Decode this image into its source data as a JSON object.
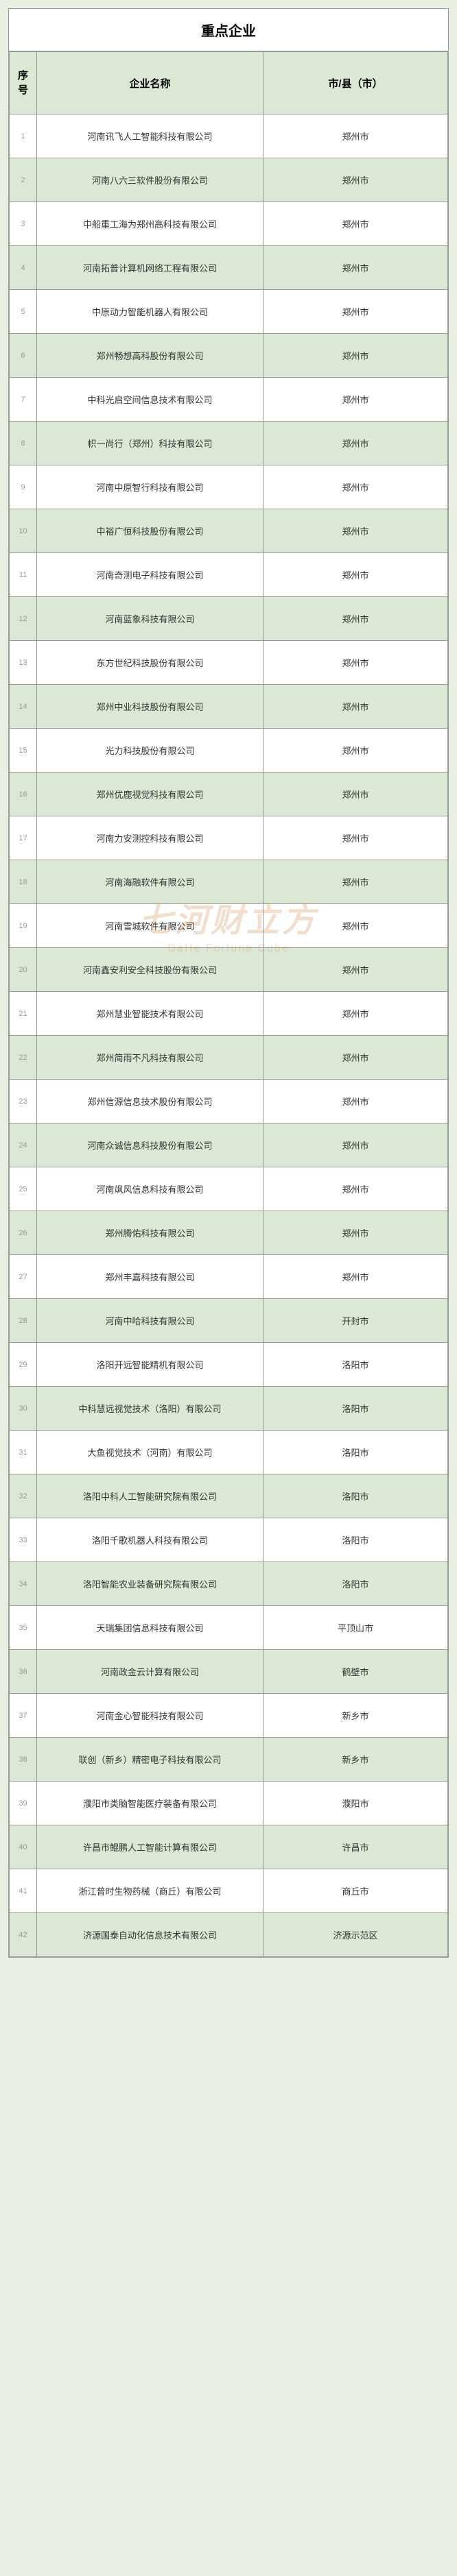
{
  "title": "重点企业",
  "headers": {
    "seq": "序\n号",
    "company": "企业名称",
    "city": "市/县（市）"
  },
  "watermark": {
    "cn": "七河财立方",
    "en": "DaHe Fortune Cube"
  },
  "rows": [
    {
      "seq": "1",
      "company": "河南讯飞人工智能科技有限公司",
      "city": "郑州市"
    },
    {
      "seq": "2",
      "company": "河南八六三软件股份有限公司",
      "city": "郑州市"
    },
    {
      "seq": "3",
      "company": "中船重工海为郑州高科技有限公司",
      "city": "郑州市"
    },
    {
      "seq": "4",
      "company": "河南拓普计算机网络工程有限公司",
      "city": "郑州市"
    },
    {
      "seq": "5",
      "company": "中原动力智能机器人有限公司",
      "city": "郑州市"
    },
    {
      "seq": "6",
      "company": "郑州畅想高科股份有限公司",
      "city": "郑州市"
    },
    {
      "seq": "7",
      "company": "中科光启空间信息技术有限公司",
      "city": "郑州市"
    },
    {
      "seq": "8",
      "company": "帜一尚行（郑州）科技有限公司",
      "city": "郑州市"
    },
    {
      "seq": "9",
      "company": "河南中原智行科技有限公司",
      "city": "郑州市"
    },
    {
      "seq": "10",
      "company": "中裕广恒科技股份有限公司",
      "city": "郑州市"
    },
    {
      "seq": "11",
      "company": "河南奇测电子科技有限公司",
      "city": "郑州市"
    },
    {
      "seq": "12",
      "company": "河南蓝象科技有限公司",
      "city": "郑州市"
    },
    {
      "seq": "13",
      "company": "东方世纪科技股份有限公司",
      "city": "郑州市"
    },
    {
      "seq": "14",
      "company": "郑州中业科技股份有限公司",
      "city": "郑州市"
    },
    {
      "seq": "15",
      "company": "光力科技股份有限公司",
      "city": "郑州市"
    },
    {
      "seq": "16",
      "company": "郑州优鹿视觉科技有限公司",
      "city": "郑州市"
    },
    {
      "seq": "17",
      "company": "河南力安测控科技有限公司",
      "city": "郑州市"
    },
    {
      "seq": "18",
      "company": "河南海融软件有限公司",
      "city": "郑州市"
    },
    {
      "seq": "19",
      "company": "河南雪城软件有限公司",
      "city": "郑州市"
    },
    {
      "seq": "20",
      "company": "河南鑫安利安全科技股份有限公司",
      "city": "郑州市"
    },
    {
      "seq": "21",
      "company": "郑州慧业智能技术有限公司",
      "city": "郑州市"
    },
    {
      "seq": "22",
      "company": "郑州简雨不凡科技有限公司",
      "city": "郑州市"
    },
    {
      "seq": "23",
      "company": "郑州信源信息技术股份有限公司",
      "city": "郑州市"
    },
    {
      "seq": "24",
      "company": "河南众诚信息科技股份有限公司",
      "city": "郑州市"
    },
    {
      "seq": "25",
      "company": "河南飒风信息科技有限公司",
      "city": "郑州市"
    },
    {
      "seq": "26",
      "company": "郑州腾佑科技有限公司",
      "city": "郑州市"
    },
    {
      "seq": "27",
      "company": "郑州丰嘉科技有限公司",
      "city": "郑州市"
    },
    {
      "seq": "28",
      "company": "河南中哈科技有限公司",
      "city": "开封市"
    },
    {
      "seq": "29",
      "company": "洛阳开远智能精机有限公司",
      "city": "洛阳市"
    },
    {
      "seq": "30",
      "company": "中科慧远视觉技术（洛阳）有限公司",
      "city": "洛阳市"
    },
    {
      "seq": "31",
      "company": "大鱼视觉技术（河南）有限公司",
      "city": "洛阳市"
    },
    {
      "seq": "32",
      "company": "洛阳中科人工智能研究院有限公司",
      "city": "洛阳市"
    },
    {
      "seq": "33",
      "company": "洛阳千歌机器人科技有限公司",
      "city": "洛阳市"
    },
    {
      "seq": "34",
      "company": "洛阳智能农业装备研究院有限公司",
      "city": "洛阳市"
    },
    {
      "seq": "35",
      "company": "天瑞集团信息科技有限公司",
      "city": "平顶山市"
    },
    {
      "seq": "36",
      "company": "河南政金云计算有限公司",
      "city": "鹤壁市"
    },
    {
      "seq": "37",
      "company": "河南金心智能科技有限公司",
      "city": "新乡市"
    },
    {
      "seq": "38",
      "company": "联创（新乡）精密电子科技有限公司",
      "city": "新乡市"
    },
    {
      "seq": "39",
      "company": "濮阳市类脑智能医疗装备有限公司",
      "city": "濮阳市"
    },
    {
      "seq": "40",
      "company": "许昌市鲲鹏人工智能计算有限公司",
      "city": "许昌市"
    },
    {
      "seq": "41",
      "company": "浙江普时生物药械（商丘）有限公司",
      "city": "商丘市"
    },
    {
      "seq": "42",
      "company": "济源国泰自动化信息技术有限公司",
      "city": "济源示范区"
    }
  ],
  "colors": {
    "header_bg": "#dae8d4",
    "even_row_bg": "#dae8d4",
    "odd_row_bg": "#ffffff",
    "border": "#999999",
    "page_bg": "#e8f0e4"
  }
}
